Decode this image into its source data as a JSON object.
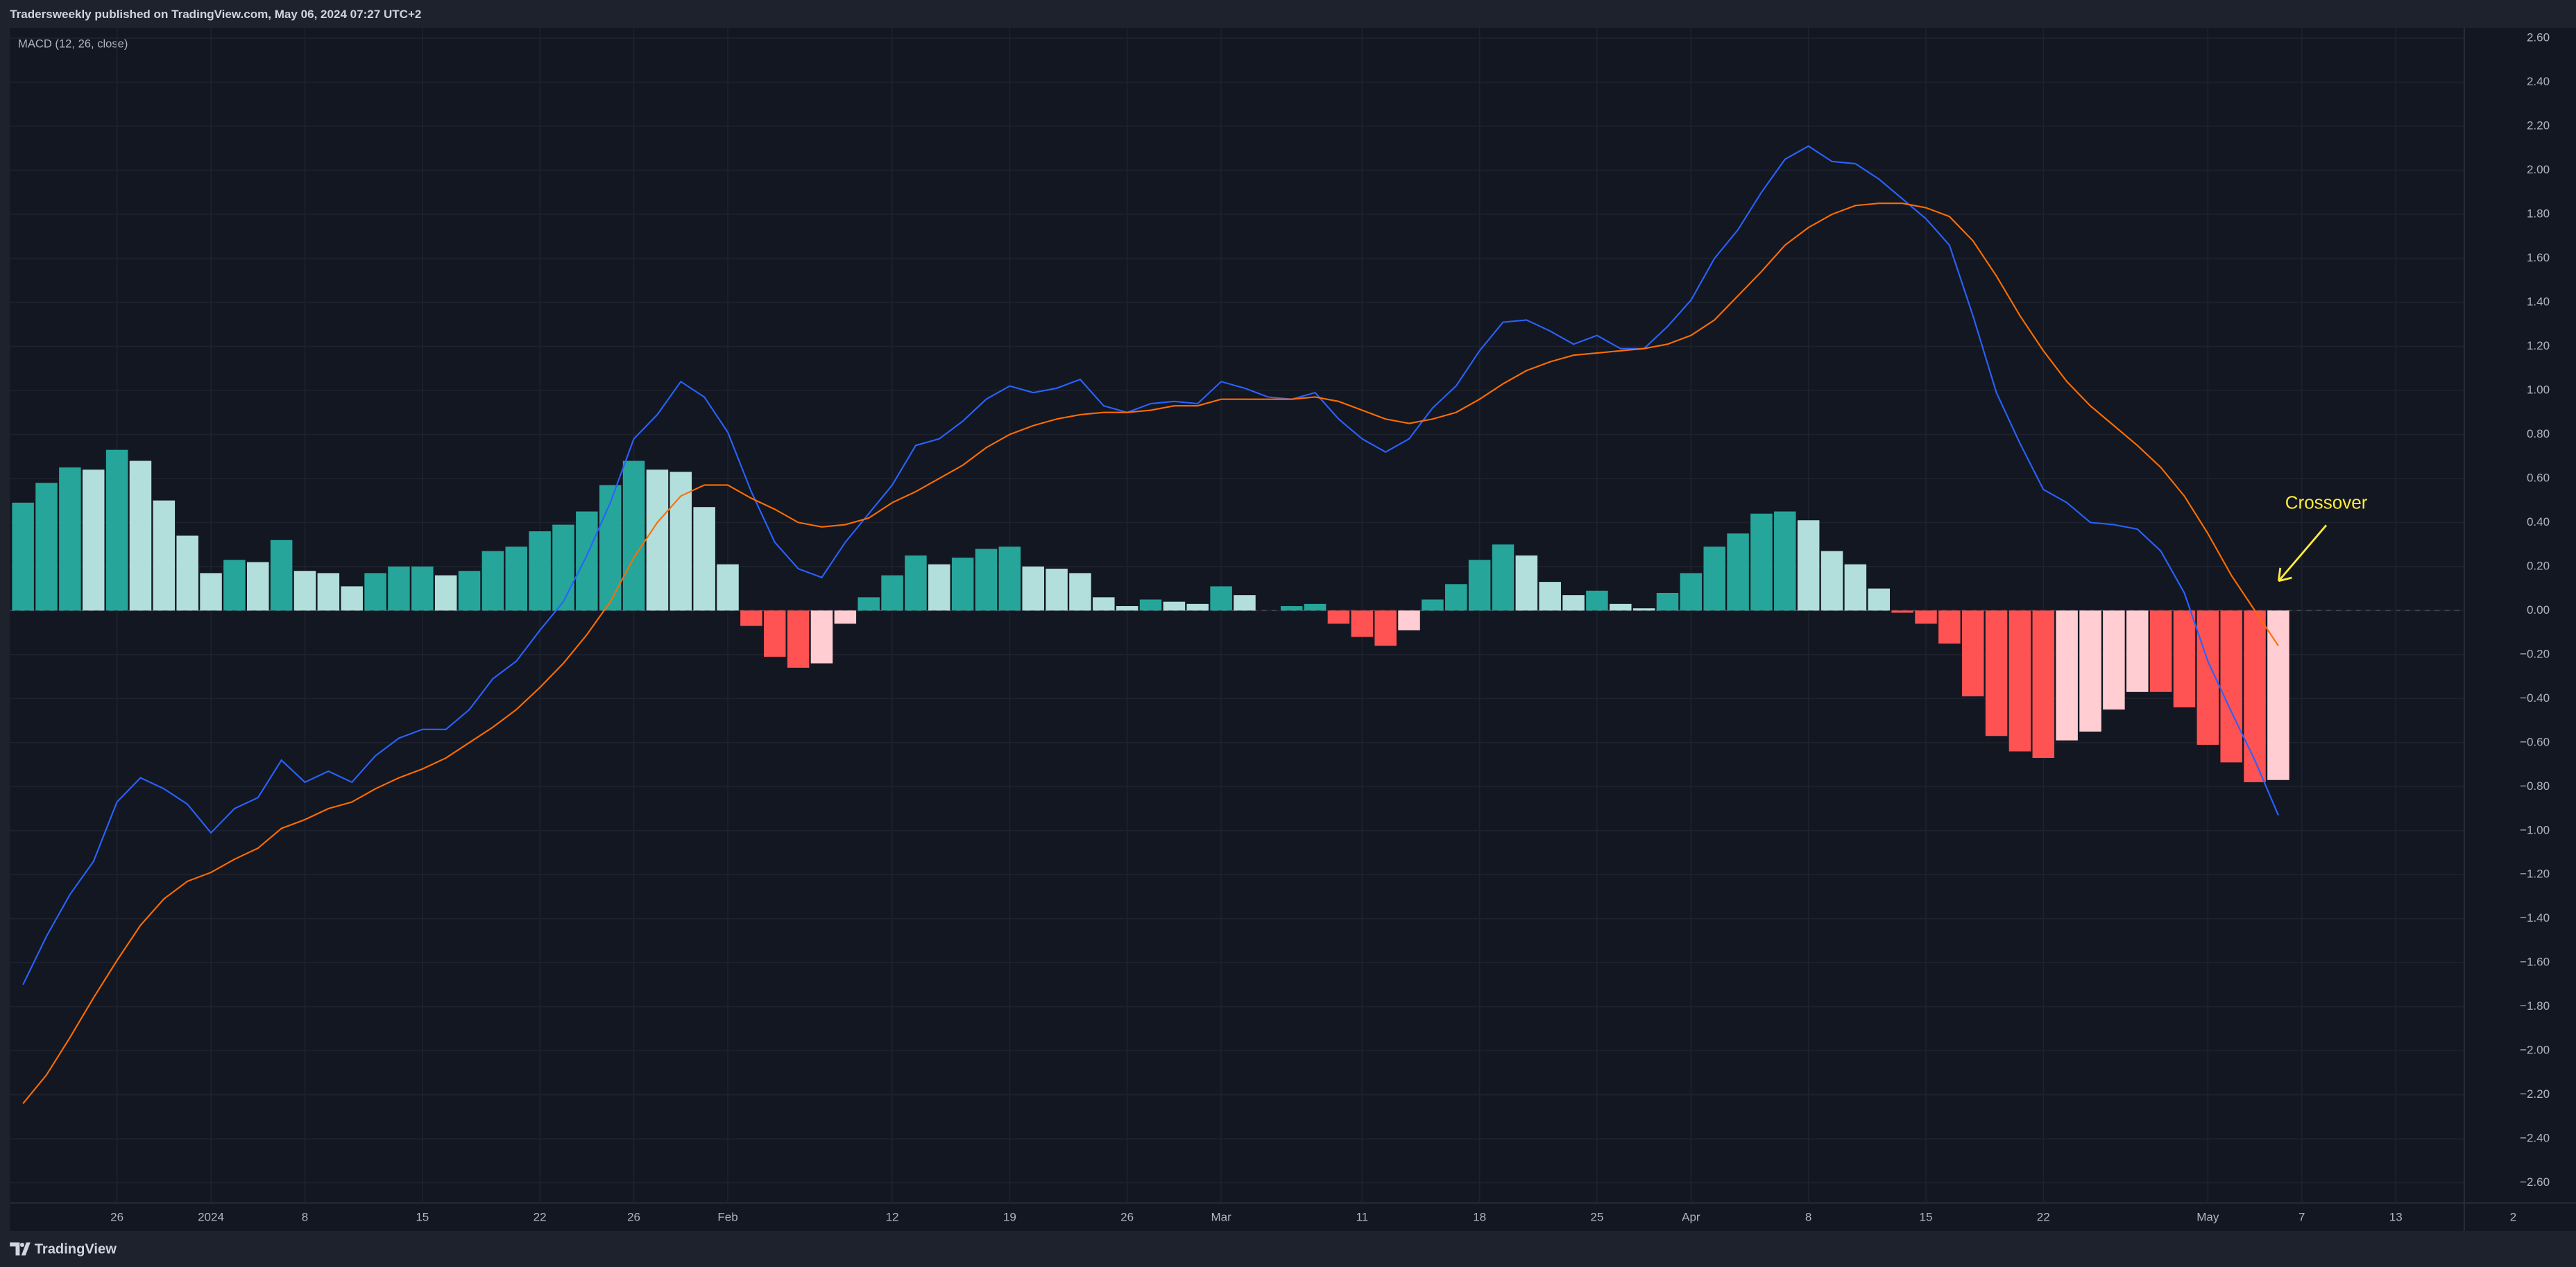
{
  "header": {
    "text": "Tradersweekly published on TradingView.com, May 06, 2024 07:27 UTC+2"
  },
  "footer": {
    "brand": "TradingView"
  },
  "chart_data": {
    "type": "combo",
    "title": "MACD (12, 26, close)",
    "annotation": {
      "text": "Crossover",
      "color": "#ffeb3b"
    },
    "grid": true,
    "categories": [
      null,
      null,
      null,
      null,
      "26",
      null,
      null,
      null,
      "2024",
      null,
      null,
      null,
      "8",
      null,
      null,
      null,
      null,
      "15",
      null,
      null,
      null,
      null,
      "22",
      null,
      null,
      null,
      "26",
      null,
      null,
      null,
      "Feb",
      null,
      null,
      null,
      null,
      null,
      null,
      "12",
      null,
      null,
      null,
      null,
      "19",
      null,
      null,
      null,
      null,
      "26",
      null,
      null,
      null,
      "Mar",
      null,
      null,
      null,
      null,
      null,
      "11",
      null,
      null,
      null,
      null,
      "18",
      null,
      null,
      null,
      null,
      "25",
      null,
      null,
      null,
      "Apr",
      null,
      null,
      null,
      null,
      "8",
      null,
      null,
      null,
      null,
      "15",
      null,
      null,
      null,
      null,
      "22",
      null,
      null,
      null,
      null,
      null,
      null,
      "May",
      null,
      null,
      null,
      "7",
      null,
      null,
      null,
      "13",
      null,
      null,
      null,
      null,
      "2"
    ],
    "ylim": [
      -2.6,
      2.6
    ],
    "yticks": [
      {
        "value": 2.6,
        "label": "2.60"
      },
      {
        "value": 2.4,
        "label": "2.40"
      },
      {
        "value": 2.2,
        "label": "2.20"
      },
      {
        "value": 2.0,
        "label": "2.00"
      },
      {
        "value": 1.8,
        "label": "1.80"
      },
      {
        "value": 1.6,
        "label": "1.60"
      },
      {
        "value": 1.4,
        "label": "1.40"
      },
      {
        "value": 1.2,
        "label": "1.20"
      },
      {
        "value": 1.0,
        "label": "1.00"
      },
      {
        "value": 0.8,
        "label": "0.80"
      },
      {
        "value": 0.6,
        "label": "0.60"
      },
      {
        "value": 0.4,
        "label": "0.40"
      },
      {
        "value": 0.2,
        "label": "0.20"
      },
      {
        "value": 0,
        "label": "0.00"
      },
      {
        "value": -0.2,
        "label": "−0.20"
      },
      {
        "value": -0.4,
        "label": "−0.40"
      },
      {
        "value": -0.6,
        "label": "−0.60"
      },
      {
        "value": -0.8,
        "label": "−0.80"
      },
      {
        "value": -1.0,
        "label": "−1.00"
      },
      {
        "value": -1.2,
        "label": "−1.20"
      },
      {
        "value": -1.4,
        "label": "−1.40"
      },
      {
        "value": -1.6,
        "label": "−1.60"
      },
      {
        "value": -1.8,
        "label": "−1.80"
      },
      {
        "value": -2.0,
        "label": "−2.00"
      },
      {
        "value": -2.2,
        "label": "−2.20"
      },
      {
        "value": -2.4,
        "label": "−2.40"
      },
      {
        "value": -2.6,
        "label": "−2.60"
      }
    ],
    "series": [
      {
        "type": "bar",
        "colors": [
          "#26a69a",
          "#b2dfdb",
          "#ff5252",
          "#ffcdd2"
        ],
        "values": [
          0.49,
          0.58,
          0.65,
          0.64,
          0.73,
          0.68,
          0.5,
          0.34,
          0.17,
          0.23,
          0.22,
          0.32,
          0.18,
          0.17,
          0.11,
          0.17,
          0.2,
          0.2,
          0.16,
          0.18,
          0.27,
          0.29,
          0.36,
          0.39,
          0.45,
          0.57,
          0.68,
          0.64,
          0.63,
          0.47,
          0.21,
          -0.07,
          -0.21,
          -0.26,
          -0.24,
          -0.06,
          0.06,
          0.16,
          0.25,
          0.21,
          0.24,
          0.28,
          0.29,
          0.2,
          0.19,
          0.17,
          0.06,
          0.02,
          0.05,
          0.04,
          0.03,
          0.11,
          0.07,
          0.0,
          0.02,
          0.03,
          -0.06,
          -0.12,
          -0.16,
          -0.09,
          0.05,
          0.12,
          0.23,
          0.3,
          0.25,
          0.13,
          0.07,
          0.09,
          0.03,
          0.01,
          0.08,
          0.17,
          0.29,
          0.35,
          0.44,
          0.45,
          0.41,
          0.27,
          0.21,
          0.1,
          -0.01,
          -0.06,
          -0.15,
          -0.39,
          -0.57,
          -0.64,
          -0.67,
          -0.59,
          -0.55,
          -0.45,
          -0.37,
          -0.37,
          -0.44,
          -0.61,
          -0.69,
          -0.78,
          -0.77,
          null,
          null,
          null,
          null,
          null,
          null,
          null,
          null,
          null,
          null
        ]
      },
      {
        "type": "line",
        "color": "#2962ff",
        "values": [
          -1.7,
          -1.48,
          -1.29,
          -1.14,
          -0.87,
          -0.76,
          -0.81,
          -0.88,
          -1.01,
          -0.9,
          -0.85,
          -0.68,
          -0.78,
          -0.73,
          -0.78,
          -0.66,
          -0.58,
          -0.54,
          -0.54,
          -0.45,
          -0.31,
          -0.23,
          -0.09,
          0.04,
          0.25,
          0.49,
          0.78,
          0.89,
          1.04,
          0.97,
          0.81,
          0.54,
          0.31,
          0.19,
          0.15,
          0.31,
          0.44,
          0.57,
          0.75,
          0.78,
          0.86,
          0.96,
          1.02,
          0.99,
          1.01,
          1.05,
          0.93,
          0.9,
          0.94,
          0.95,
          0.94,
          1.04,
          1.01,
          0.97,
          0.96,
          0.99,
          0.87,
          0.78,
          0.72,
          0.78,
          0.92,
          1.02,
          1.18,
          1.31,
          1.32,
          1.27,
          1.21,
          1.25,
          1.19,
          1.19,
          1.29,
          1.41,
          1.6,
          1.73,
          1.9,
          2.05,
          2.11,
          2.04,
          2.03,
          1.96,
          1.87,
          1.78,
          1.66,
          1.34,
          0.99,
          0.76,
          0.55,
          0.49,
          0.4,
          0.39,
          0.37,
          0.27,
          0.08,
          -0.23,
          -0.46,
          -0.68,
          -0.93,
          null,
          null,
          null,
          null,
          null,
          null,
          null,
          null,
          null,
          null
        ]
      },
      {
        "type": "line",
        "color": "#ff6d00",
        "values": [
          -2.24,
          -2.11,
          -1.94,
          -1.76,
          -1.59,
          -1.43,
          -1.31,
          -1.23,
          -1.19,
          -1.13,
          -1.08,
          -0.99,
          -0.95,
          -0.9,
          -0.87,
          -0.81,
          -0.76,
          -0.72,
          -0.67,
          -0.6,
          -0.53,
          -0.45,
          -0.35,
          -0.24,
          -0.11,
          0.04,
          0.24,
          0.4,
          0.52,
          0.57,
          0.57,
          0.51,
          0.46,
          0.4,
          0.38,
          0.39,
          0.42,
          0.49,
          0.54,
          0.6,
          0.66,
          0.74,
          0.8,
          0.84,
          0.87,
          0.89,
          0.9,
          0.9,
          0.91,
          0.93,
          0.93,
          0.96,
          0.96,
          0.96,
          0.96,
          0.97,
          0.95,
          0.91,
          0.87,
          0.85,
          0.87,
          0.9,
          0.96,
          1.03,
          1.09,
          1.13,
          1.16,
          1.17,
          1.18,
          1.19,
          1.21,
          1.25,
          1.32,
          1.43,
          1.54,
          1.66,
          1.74,
          1.8,
          1.84,
          1.85,
          1.85,
          1.83,
          1.79,
          1.68,
          1.52,
          1.34,
          1.18,
          1.04,
          0.93,
          0.84,
          0.75,
          0.65,
          0.52,
          0.35,
          0.16,
          0.0,
          -0.16,
          null,
          null,
          null,
          null,
          null,
          null,
          null,
          null,
          null,
          null
        ]
      }
    ]
  }
}
